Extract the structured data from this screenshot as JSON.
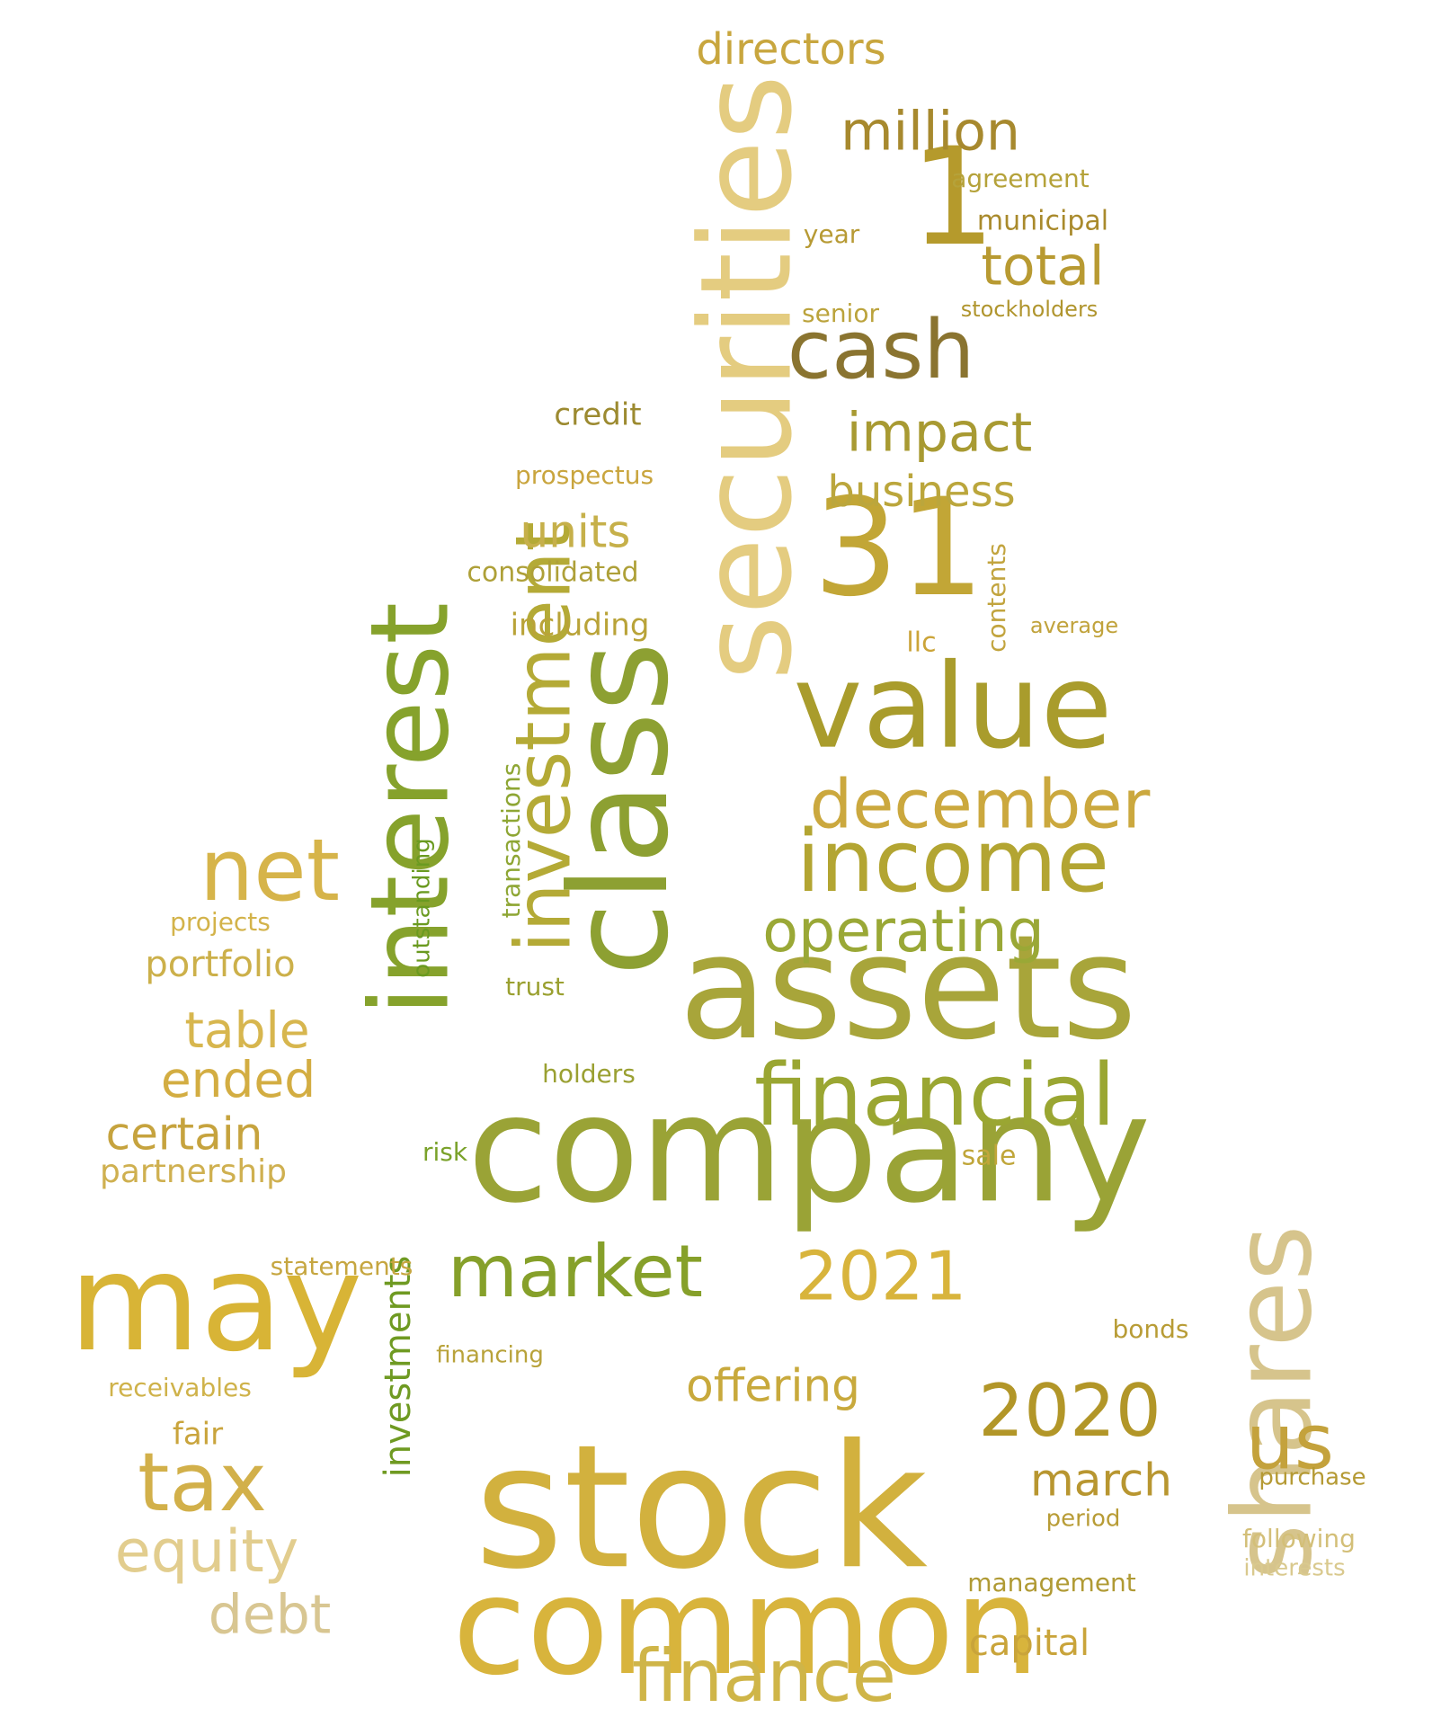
{
  "words": [
    {
      "text": "stock",
      "color": "#d2b13e",
      "weight": 1.0
    },
    {
      "text": "class",
      "color": "#8da032",
      "weight": 0.93
    },
    {
      "text": "company",
      "color": "#9aa336",
      "weight": 0.92
    },
    {
      "text": "assets",
      "color": "#a8a53a",
      "weight": 0.9
    },
    {
      "text": "common",
      "color": "#d8b43c",
      "weight": 0.9
    },
    {
      "text": "securities",
      "color": "#e4cc80",
      "weight": 0.88
    },
    {
      "text": "interest",
      "color": "#86a22c",
      "weight": 0.86
    },
    {
      "text": "may",
      "color": "#d8b436",
      "weight": 0.85
    },
    {
      "text": "value",
      "color": "#a99c2c",
      "weight": 0.8
    },
    {
      "text": "31",
      "color": "#c2a636",
      "weight": 0.78
    },
    {
      "text": "shares",
      "color": "#d6c48c",
      "weight": 0.76
    },
    {
      "text": "investment",
      "color": "#b4aa36",
      "weight": 0.7
    },
    {
      "text": "1",
      "color": "#b59a2c",
      "weight": 0.68
    },
    {
      "text": "financial",
      "color": "#9aa632",
      "weight": 0.66
    },
    {
      "text": "income",
      "color": "#b3a532",
      "weight": 0.64
    },
    {
      "text": "net",
      "color": "#d6b44a",
      "weight": 0.62
    },
    {
      "text": "tax",
      "color": "#d2b04a",
      "weight": 0.62
    },
    {
      "text": "finance",
      "color": "#cfb548",
      "weight": 0.6
    },
    {
      "text": "december",
      "color": "#cba83e",
      "weight": 0.58
    },
    {
      "text": "market",
      "color": "#86a02a",
      "weight": 0.58
    },
    {
      "text": "2020",
      "color": "#b29628",
      "weight": 0.56
    },
    {
      "text": "us",
      "color": "#c4a23c",
      "weight": 0.55
    },
    {
      "text": "2021",
      "color": "#d8b43c",
      "weight": 0.55
    },
    {
      "text": "cash",
      "color": "#8a7430",
      "weight": 0.54
    },
    {
      "text": "operating",
      "color": "#9aa836",
      "weight": 0.52
    },
    {
      "text": "equity",
      "color": "#e2cd8e",
      "weight": 0.5
    },
    {
      "text": "million",
      "color": "#a7892e",
      "weight": 0.48
    },
    {
      "text": "total",
      "color": "#b89a32",
      "weight": 0.48
    },
    {
      "text": "impact",
      "color": "#a89a32",
      "weight": 0.47
    },
    {
      "text": "debt",
      "color": "#d8c692",
      "weight": 0.46
    },
    {
      "text": "investments",
      "color": "#6f9a22",
      "weight": 0.45
    },
    {
      "text": "ended",
      "color": "#d3ad42",
      "weight": 0.44
    },
    {
      "text": "table",
      "color": "#d7b64e",
      "weight": 0.44
    },
    {
      "text": "directors",
      "color": "#c8a63e",
      "weight": 0.43
    },
    {
      "text": "certain",
      "color": "#c6a33e",
      "weight": 0.42
    },
    {
      "text": "offering",
      "color": "#c8a93c",
      "weight": 0.42
    },
    {
      "text": "units",
      "color": "#c6b04a",
      "weight": 0.41
    },
    {
      "text": "business",
      "color": "#bba63c",
      "weight": 0.4
    },
    {
      "text": "march",
      "color": "#b89630",
      "weight": 0.4
    },
    {
      "text": "capital",
      "color": "#c9a43a",
      "weight": 0.38
    },
    {
      "text": "partnership",
      "color": "#cfb050",
      "weight": 0.36
    },
    {
      "text": "portfolio",
      "color": "#ccb04a",
      "weight": 0.36
    },
    {
      "text": "consolidated",
      "color": "#aea038",
      "weight": 0.33
    },
    {
      "text": "stockholders",
      "color": "#b0952e",
      "weight": 0.32
    },
    {
      "text": "agreement",
      "color": "#b5a23a",
      "weight": 0.32
    },
    {
      "text": "municipal",
      "color": "#a98a2c",
      "weight": 0.31
    },
    {
      "text": "including",
      "color": "#b9a338",
      "weight": 0.31
    },
    {
      "text": "receivables",
      "color": "#cfb24a",
      "weight": 0.3
    },
    {
      "text": "credit",
      "color": "#9c8a30",
      "weight": 0.3
    },
    {
      "text": "fair",
      "color": "#c9a43c",
      "weight": 0.3
    },
    {
      "text": "statements",
      "color": "#c6a640",
      "weight": 0.28
    },
    {
      "text": "prospectus",
      "color": "#c9a53e",
      "weight": 0.28
    },
    {
      "text": "management",
      "color": "#b09a34",
      "weight": 0.28
    },
    {
      "text": "transactions",
      "color": "#8ea634",
      "weight": 0.28
    },
    {
      "text": "sale",
      "color": "#c0a63a",
      "weight": 0.28
    },
    {
      "text": "senior",
      "color": "#bba33c",
      "weight": 0.27
    },
    {
      "text": "projects",
      "color": "#d3b34a",
      "weight": 0.27
    },
    {
      "text": "year",
      "color": "#b79a34",
      "weight": 0.27
    },
    {
      "text": "holders",
      "color": "#9aa032",
      "weight": 0.26
    },
    {
      "text": "contents",
      "color": "#c2a43e",
      "weight": 0.26
    },
    {
      "text": "outstanding",
      "color": "#6a9a20",
      "weight": 0.26
    },
    {
      "text": "financing",
      "color": "#b8a23a",
      "weight": 0.26
    },
    {
      "text": "trust",
      "color": "#9aa030",
      "weight": 0.26
    },
    {
      "text": "risk",
      "color": "#7aa22a",
      "weight": 0.26
    },
    {
      "text": "llc",
      "color": "#cba438",
      "weight": 0.26
    },
    {
      "text": "bonds",
      "color": "#b89c36",
      "weight": 0.26
    },
    {
      "text": "period",
      "color": "#b89c36",
      "weight": 0.26
    },
    {
      "text": "purchase",
      "color": "#b59a34",
      "weight": 0.25
    },
    {
      "text": "average",
      "color": "#c1a33c",
      "weight": 0.25
    },
    {
      "text": "interests",
      "color": "#d9c98e",
      "weight": 0.25
    },
    {
      "text": "following",
      "color": "#d3bf78",
      "weight": 0.25
    }
  ]
}
